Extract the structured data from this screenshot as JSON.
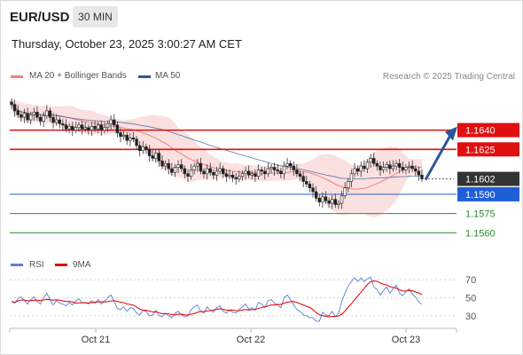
{
  "header": {
    "symbol": "EUR/USD",
    "timeframe": "30 MIN",
    "datetime": "Thursday, October 23, 2025 3:00:27 AM CET"
  },
  "legend": {
    "ma20_label": "MA 20 + Bollinger Bands",
    "ma50_label": "MA 50",
    "ma20_color": "#f08080",
    "ma50_color": "#2b5797",
    "copyright": "Research © 2025 Trading Central"
  },
  "chart_data": [
    {
      "type": "candlestick",
      "title": "EUR/USD 30 MIN",
      "x_ticks": [
        "Oct 21",
        "Oct 22",
        "Oct 23"
      ],
      "ylim": [
        1.1545,
        1.1675
      ],
      "levels": [
        {
          "label": "1.1640",
          "value": 1.164,
          "kind": "resistance",
          "color": "#e01010"
        },
        {
          "label": "1.1625",
          "value": 1.1625,
          "kind": "resistance",
          "color": "#e01010"
        },
        {
          "label": "1.1602",
          "value": 1.1602,
          "kind": "last",
          "color": "#333333"
        },
        {
          "label": "1.1590",
          "value": 1.159,
          "kind": "pivot",
          "color": "#1f5fd6"
        },
        {
          "label": "1.1575",
          "value": 1.1575,
          "kind": "support",
          "color": "#2e8b2e"
        },
        {
          "label": "1.1560",
          "value": 1.156,
          "kind": "support",
          "color": "#2e8b2e"
        }
      ],
      "projection": {
        "from": 1.1602,
        "to": 1.164,
        "color": "#2b5797"
      },
      "closes": [
        1.166,
        1.1655,
        1.1652,
        1.165,
        1.1653,
        1.1648,
        1.1652,
        1.1654,
        1.165,
        1.1647,
        1.1651,
        1.1655,
        1.165,
        1.1646,
        1.1648,
        1.1645,
        1.1644,
        1.1641,
        1.1643,
        1.164,
        1.1642,
        1.1644,
        1.1641,
        1.1642,
        1.164,
        1.1643,
        1.1641,
        1.1644,
        1.164,
        1.1642,
        1.1645,
        1.1648,
        1.1644,
        1.1638,
        1.1635,
        1.1636,
        1.1632,
        1.1634,
        1.1633,
        1.1628,
        1.1624,
        1.1627,
        1.1625,
        1.162,
        1.1618,
        1.1622,
        1.1616,
        1.1612,
        1.1614,
        1.161,
        1.1607,
        1.1611,
        1.1613,
        1.161,
        1.1606,
        1.1604,
        1.1609,
        1.1612,
        1.1614,
        1.1608,
        1.1606,
        1.161,
        1.1607,
        1.1605,
        1.1608,
        1.161,
        1.1606,
        1.1604,
        1.1605,
        1.1603,
        1.1602,
        1.1604,
        1.1606,
        1.1608,
        1.1605,
        1.1606,
        1.1604,
        1.1609,
        1.1608,
        1.1606,
        1.161,
        1.1611,
        1.1609,
        1.1608,
        1.1606,
        1.1612,
        1.1614,
        1.1612,
        1.1609,
        1.1606,
        1.1604,
        1.16,
        1.1598,
        1.1595,
        1.1592,
        1.1587,
        1.1584,
        1.1588,
        1.1585,
        1.1583,
        1.1586,
        1.1582,
        1.1583,
        1.1589,
        1.1595,
        1.16,
        1.1606,
        1.161,
        1.1608,
        1.1612,
        1.161,
        1.1615,
        1.1618,
        1.1614,
        1.1612,
        1.1609,
        1.1611,
        1.1613,
        1.161,
        1.1612,
        1.1614,
        1.1611,
        1.1609,
        1.1611,
        1.1612,
        1.161,
        1.1608,
        1.1605,
        1.1602
      ]
    },
    {
      "type": "line",
      "title": "RSI",
      "legend": [
        "RSI",
        "9MA"
      ],
      "colors": {
        "RSI": "#5b7fd6",
        "9MA": "#e01010"
      },
      "y_ticks": [
        70,
        50,
        30
      ],
      "ylim": [
        20,
        80
      ],
      "rsi": [
        46,
        44,
        49,
        51,
        47,
        43,
        48,
        51,
        46,
        43,
        50,
        55,
        48,
        42,
        47,
        44,
        43,
        41,
        45,
        42,
        46,
        49,
        44,
        45,
        43,
        47,
        44,
        48,
        43,
        46,
        50,
        53,
        46,
        38,
        37,
        40,
        35,
        39,
        38,
        33,
        31,
        36,
        35,
        30,
        31,
        36,
        30,
        29,
        33,
        30,
        28,
        33,
        35,
        31,
        29,
        30,
        37,
        40,
        42,
        35,
        33,
        40,
        36,
        34,
        39,
        41,
        35,
        33,
        36,
        34,
        33,
        37,
        40,
        43,
        37,
        39,
        36,
        45,
        43,
        39,
        47,
        48,
        44,
        42,
        39,
        50,
        53,
        48,
        42,
        37,
        35,
        31,
        30,
        28,
        28,
        24,
        24,
        34,
        31,
        30,
        35,
        29,
        33,
        46,
        55,
        63,
        68,
        72,
        68,
        72,
        68,
        71,
        73,
        62,
        59,
        53,
        58,
        62,
        55,
        60,
        64,
        55,
        52,
        57,
        60,
        54,
        51,
        45,
        43
      ]
    }
  ],
  "rsi_legend": {
    "rsi_label": "RSI",
    "ma9_label": "9MA"
  }
}
